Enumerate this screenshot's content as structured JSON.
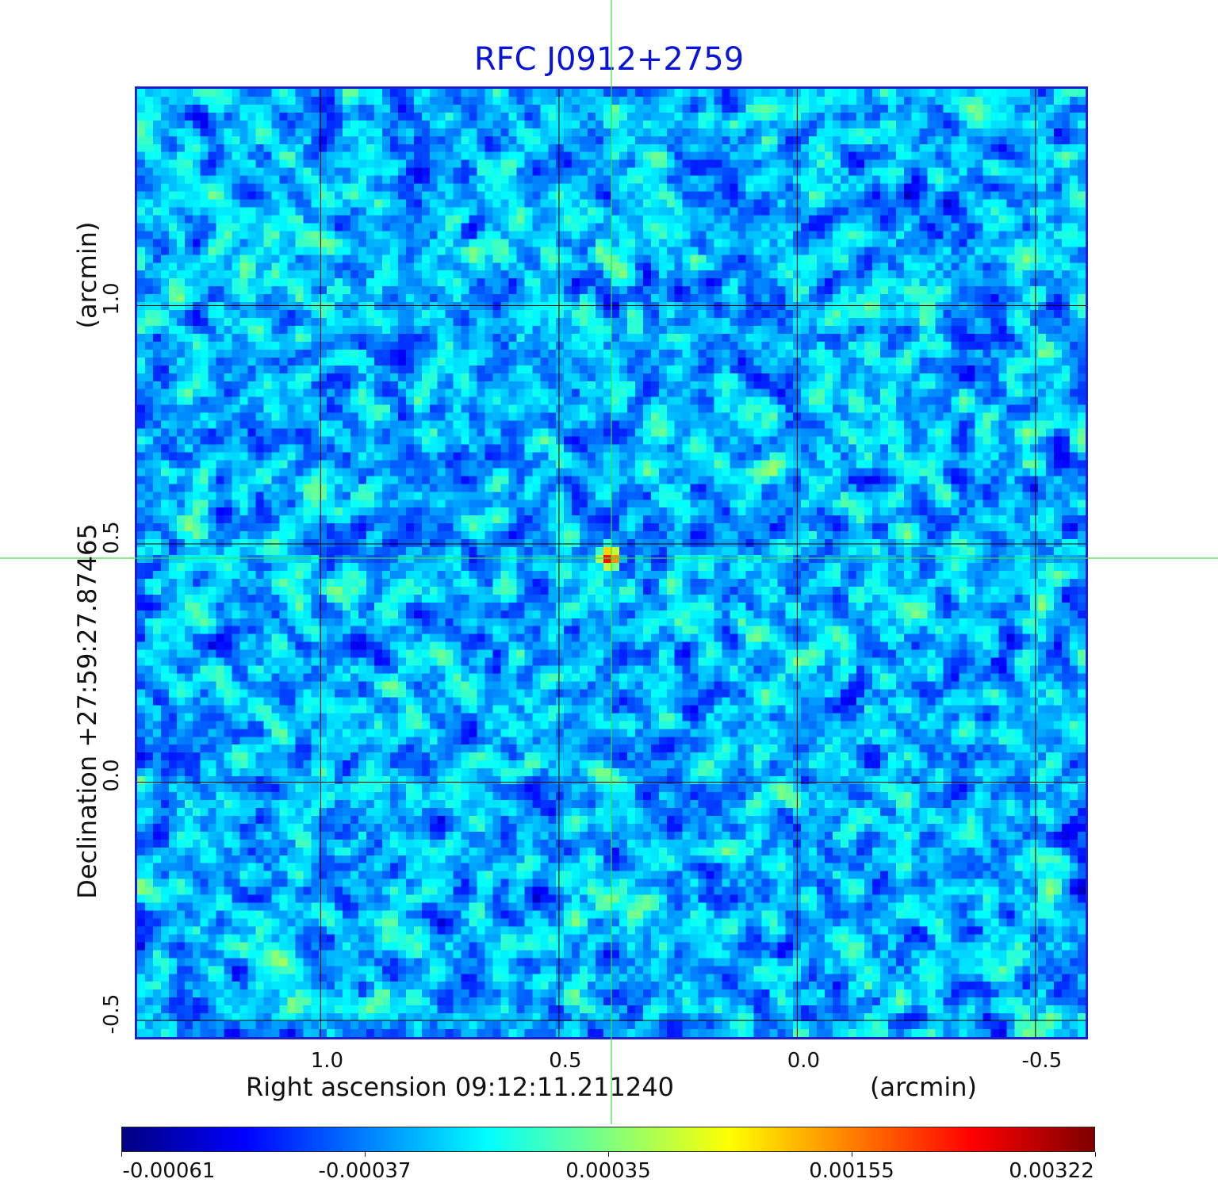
{
  "chart_data": {
    "type": "heatmap",
    "title": "RFC J0912+2759",
    "xlabel": "Right ascension  09:12:11.211240",
    "xunit": "(arcmin)",
    "ylabel": "Declination  +27:59:27.87465",
    "yunit": "(arcmin)",
    "x_range": [
      1.39,
      -0.61
    ],
    "y_range": [
      -0.54,
      1.46
    ],
    "x_ticks": [
      {
        "value": 1.0,
        "label": "1.0"
      },
      {
        "value": 0.5,
        "label": "0.5"
      },
      {
        "value": 0.0,
        "label": "0.0"
      },
      {
        "value": -0.5,
        "label": "-0.5"
      }
    ],
    "y_ticks": [
      {
        "value": 1.0,
        "label": "1.0"
      },
      {
        "value": 0.5,
        "label": "0.5"
      },
      {
        "value": 0.0,
        "label": "0.0"
      },
      {
        "value": -0.5,
        "label": "-0.5"
      }
    ],
    "grid": true,
    "source_peak": {
      "x": 0.39,
      "y": 0.47
    },
    "colorscale": "jet",
    "colorbar": {
      "min": -0.00061,
      "max": 0.00322,
      "labels": [
        "-0.00061",
        "-0.00037",
        "0.00035",
        "0.00155",
        "0.00322"
      ]
    }
  }
}
